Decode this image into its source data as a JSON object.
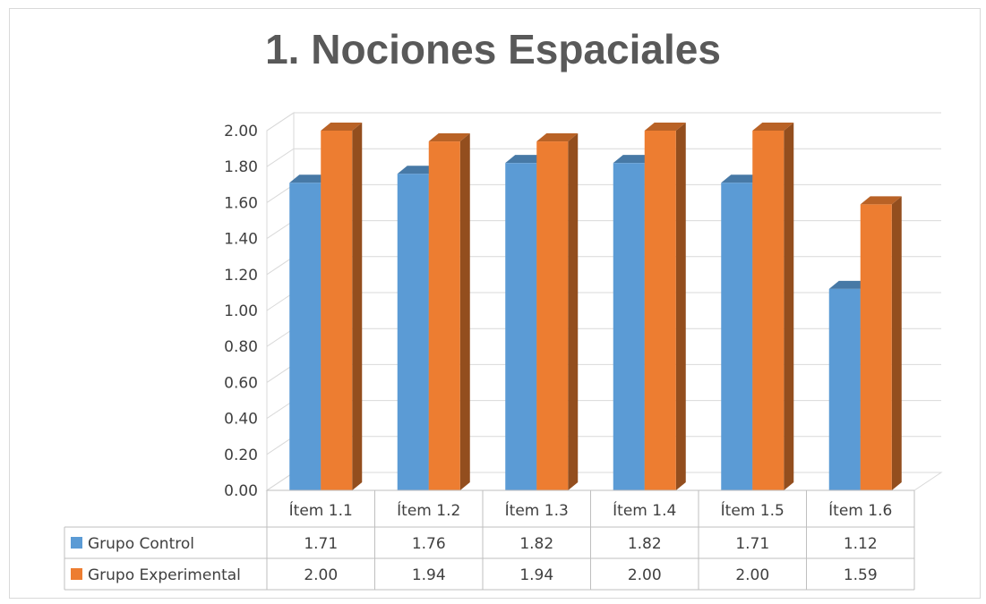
{
  "chart_data": {
    "type": "bar",
    "title": "1. Nociones Espaciales",
    "categories": [
      "Ítem 1.1",
      "Ítem 1.2",
      "Ítem 1.3",
      "Ítem 1.4",
      "Ítem 1.5",
      "Ítem 1.6"
    ],
    "series": [
      {
        "name": "Grupo Control",
        "values": [
          1.71,
          1.76,
          1.82,
          1.82,
          1.71,
          1.12
        ],
        "labels": [
          "1.71",
          "1.76",
          "1.82",
          "1.82",
          "1.71",
          "1.12"
        ],
        "color": "#5b9bd5"
      },
      {
        "name": "Grupo Experimental",
        "values": [
          2.0,
          1.94,
          1.94,
          2.0,
          2.0,
          1.59
        ],
        "labels": [
          "2.00",
          "1.94",
          "1.94",
          "2.00",
          "2.00",
          "1.59"
        ],
        "color": "#ed7d31"
      }
    ],
    "yticks": [
      "0.00",
      "0.20",
      "0.40",
      "0.60",
      "0.80",
      "1.00",
      "1.20",
      "1.40",
      "1.60",
      "1.80",
      "2.00"
    ],
    "ylim": [
      0,
      2
    ],
    "grid": true,
    "legend": "data-table",
    "style": "3d-clustered-column"
  }
}
